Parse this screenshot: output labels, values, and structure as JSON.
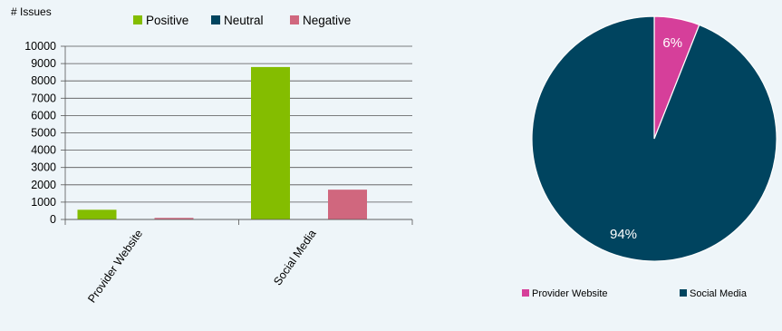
{
  "chart_data": [
    {
      "type": "bar",
      "ylabel": "# Issues",
      "categories": [
        "Provider Website",
        "Social Media"
      ],
      "series": [
        {
          "name": "Positive",
          "color": "#84bd00",
          "values": [
            560,
            8800
          ]
        },
        {
          "name": "Neutral",
          "color": "#00445f",
          "values": [
            0,
            0
          ]
        },
        {
          "name": "Negative",
          "color": "#d0677e",
          "values": [
            90,
            1720
          ]
        }
      ],
      "ylim": [
        0,
        10000
      ],
      "yticks": [
        0,
        1000,
        2000,
        3000,
        4000,
        5000,
        6000,
        7000,
        8000,
        9000,
        10000
      ],
      "grid": true,
      "legend_position": "top"
    },
    {
      "type": "pie",
      "categories": [
        "Provider Website",
        "Social Media"
      ],
      "values": [
        6,
        94
      ],
      "labels": [
        "6%",
        "94%"
      ],
      "colors": [
        "#d63f9a",
        "#00445f"
      ],
      "legend_position": "bottom"
    }
  ]
}
